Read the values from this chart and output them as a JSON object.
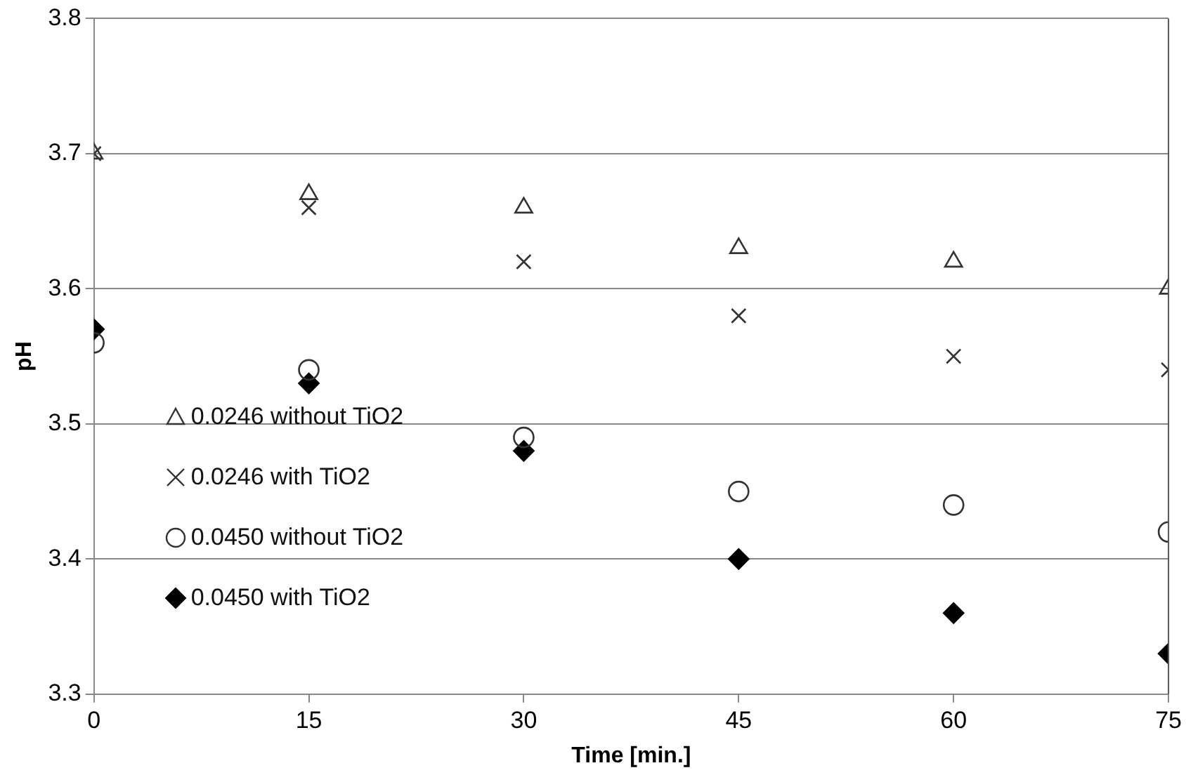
{
  "chart_data": {
    "type": "scatter",
    "xlabel": "Time [min.]",
    "ylabel": "pH",
    "x": [
      0,
      15,
      30,
      45,
      60,
      75
    ],
    "xlim": [
      0,
      75
    ],
    "xticks": [
      0,
      15,
      30,
      45,
      60,
      75
    ],
    "ylim": [
      3.3,
      3.8
    ],
    "yticks": [
      3.3,
      3.4,
      3.5,
      3.6,
      3.7,
      3.8
    ],
    "grid": "y",
    "legend": "left",
    "series": [
      {
        "name": "0.0246 without TiO2",
        "color": "#333333",
        "marker": "triangle",
        "values": [
          3.7,
          3.67,
          3.66,
          3.63,
          3.62,
          3.6
        ]
      },
      {
        "name": "0.0246 with TiO2",
        "color": "#333333",
        "marker": "cross",
        "values": [
          3.7,
          3.66,
          3.62,
          3.58,
          3.55,
          3.54
        ]
      },
      {
        "name": "0.0450 without TiO2",
        "color": "#333333",
        "marker": "circle",
        "values": [
          3.56,
          3.54,
          3.49,
          3.45,
          3.44,
          3.42
        ]
      },
      {
        "name": "0.0450 with TiO2",
        "color": "#000000",
        "marker": "diamond",
        "values": [
          3.57,
          3.53,
          3.48,
          3.4,
          3.36,
          3.33
        ]
      }
    ]
  }
}
